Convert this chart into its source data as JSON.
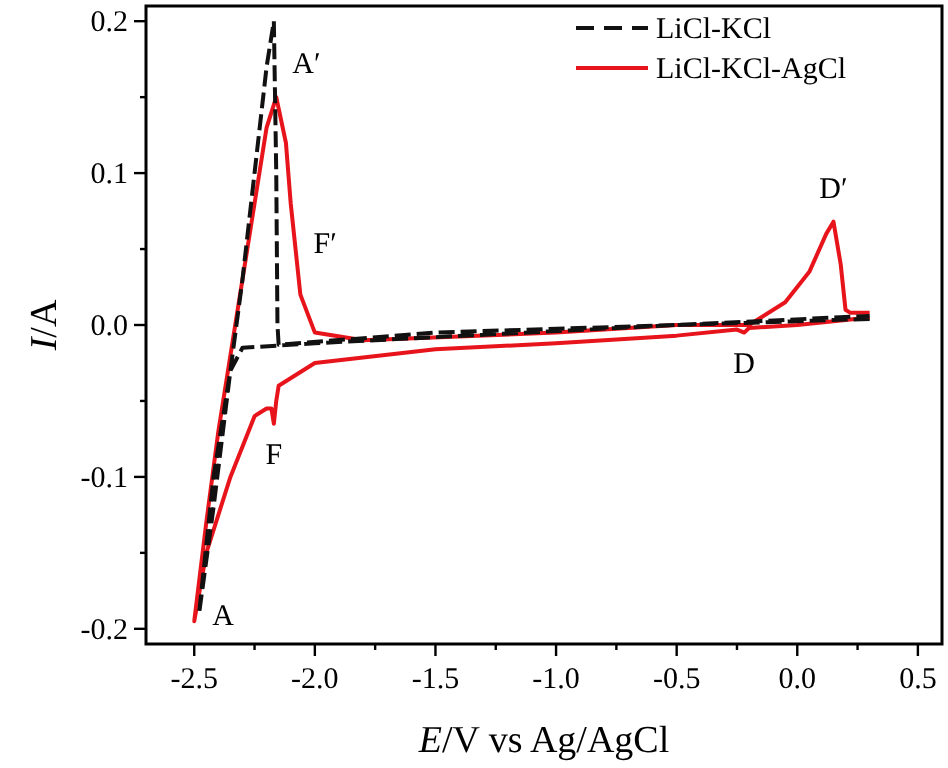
{
  "chart_data": {
    "type": "line",
    "xlabel": "E/V vs Ag/AgCl",
    "ylabel": "I/A",
    "xlim": [
      -2.7,
      0.6
    ],
    "ylim": [
      -0.21,
      0.21
    ],
    "xticks": [
      {
        "value": -2.5,
        "label": "-2.5"
      },
      {
        "value": -2.25,
        "label": null
      },
      {
        "value": -2.0,
        "label": "-2.0"
      },
      {
        "value": -1.75,
        "label": null
      },
      {
        "value": -1.5,
        "label": "-1.5"
      },
      {
        "value": -1.25,
        "label": null
      },
      {
        "value": -1.0,
        "label": "-1.0"
      },
      {
        "value": -0.75,
        "label": null
      },
      {
        "value": -0.5,
        "label": "-0.5"
      },
      {
        "value": -0.25,
        "label": null
      },
      {
        "value": 0,
        "label": "0.0"
      },
      {
        "value": 0.25,
        "label": null
      },
      {
        "value": 0.5,
        "label": "0.5"
      }
    ],
    "yticks": [
      {
        "value": -0.2,
        "label": "-0.2"
      },
      {
        "value": -0.15,
        "label": null
      },
      {
        "value": -0.1,
        "label": "-0.1"
      },
      {
        "value": -0.05,
        "label": null
      },
      {
        "value": 0,
        "label": "0.0"
      },
      {
        "value": 0.05,
        "label": null
      },
      {
        "value": 0.1,
        "label": "0.1"
      },
      {
        "value": 0.15,
        "label": null
      },
      {
        "value": 0.2,
        "label": "0.2"
      }
    ],
    "legend": "top right",
    "grid": false,
    "series": [
      {
        "name": "LiCl-KCl",
        "color": "#111111",
        "line_style": "dashed",
        "x": [
          0.3,
          -0.5,
          -1.5,
          -2.0,
          -2.3,
          -2.35,
          -2.42,
          -2.48,
          -2.42,
          -2.35,
          -2.3,
          -2.25,
          -2.2,
          -2.17,
          -2.16,
          -2.155,
          -2.15,
          -1.5,
          -0.5,
          0.3
        ],
        "values": [
          0.004,
          0.0,
          -0.008,
          -0.012,
          -0.015,
          -0.03,
          -0.1,
          -0.19,
          -0.12,
          -0.03,
          0.03,
          0.1,
          0.17,
          0.2,
          0.1,
          0.0,
          -0.013,
          -0.005,
          0.0,
          0.006
        ]
      },
      {
        "name": "LiCl-KCl-AgCl",
        "color": "#e8141b",
        "line_style": "solid",
        "x": [
          0.3,
          0.0,
          -0.2,
          -0.22,
          -0.25,
          -0.5,
          -1.0,
          -1.5,
          -2.0,
          -2.15,
          -2.16,
          -2.17,
          -2.18,
          -2.2,
          -2.25,
          -2.35,
          -2.45,
          -2.5,
          -2.45,
          -2.4,
          -2.35,
          -2.3,
          -2.25,
          -2.2,
          -2.16,
          -2.12,
          -2.1,
          -2.08,
          -2.06,
          -2.0,
          -1.8,
          -1.0,
          -0.5,
          -0.2,
          -0.05,
          0.05,
          0.12,
          0.15,
          0.18,
          0.2,
          0.22,
          0.3
        ],
        "values": [
          0.005,
          0.0,
          -0.002,
          -0.005,
          -0.003,
          -0.007,
          -0.012,
          -0.016,
          -0.025,
          -0.04,
          -0.05,
          -0.065,
          -0.055,
          -0.055,
          -0.06,
          -0.1,
          -0.15,
          -0.195,
          -0.13,
          -0.07,
          -0.02,
          0.03,
          0.08,
          0.13,
          0.15,
          0.12,
          0.08,
          0.05,
          0.02,
          -0.005,
          -0.01,
          -0.005,
          0.0,
          0.0,
          0.015,
          0.035,
          0.06,
          0.068,
          0.04,
          0.01,
          0.008,
          0.008
        ]
      }
    ],
    "annotations": [
      {
        "text": "A′",
        "x": -2.16,
        "y": 0.15
      },
      {
        "text": "F′",
        "x": -2.08,
        "y": 0.05
      },
      {
        "text": "F",
        "x": -2.17,
        "y": -0.065
      },
      {
        "text": "A",
        "x": -2.5,
        "y": -0.195
      },
      {
        "text": "D",
        "x": -0.22,
        "y": -0.005
      },
      {
        "text": "D′",
        "x": 0.15,
        "y": 0.068
      }
    ]
  }
}
